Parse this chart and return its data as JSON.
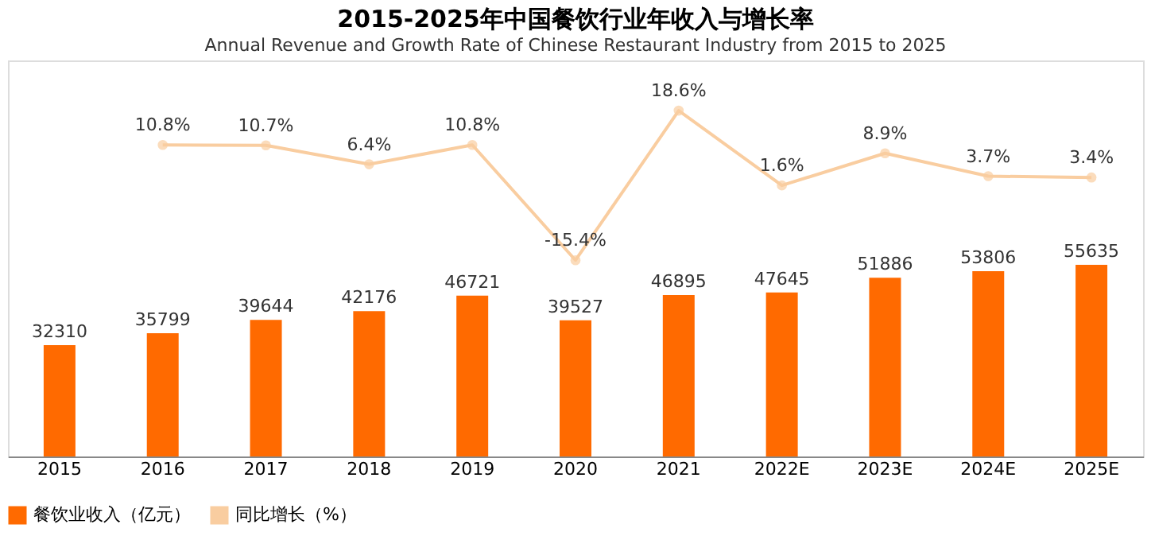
{
  "chart_data": {
    "type": "bar",
    "title": "2015-2025年中国餐饮行业年收入与增长率",
    "subtitle": "Annual Revenue and Growth Rate of Chinese Restaurant Industry from 2015 to 2025",
    "categories": [
      "2015",
      "2016",
      "2017",
      "2018",
      "2019",
      "2020",
      "2021",
      "2022E",
      "2023E",
      "2024E",
      "2025E"
    ],
    "series": [
      {
        "name": "餐饮业收入（亿元）",
        "color": "#ff6a00",
        "values": [
          32310,
          35799,
          39644,
          42176,
          46721,
          39527,
          46895,
          47645,
          51886,
          53806,
          55635
        ]
      },
      {
        "name": "同比增长（%）",
        "type": "line",
        "axis": "y2",
        "color": "#f9cda0",
        "marker": "circle",
        "values": [
          null,
          10.8,
          10.7,
          6.4,
          10.8,
          -15.4,
          18.6,
          1.6,
          8.9,
          3.7,
          3.4
        ],
        "value_labels": [
          null,
          "10.8%",
          "10.7%",
          "6.4%",
          "10.8%",
          "-15.4%",
          "18.6%",
          "1.6%",
          "8.9%",
          "3.7%",
          "3.4%"
        ]
      }
    ],
    "data_labels": true,
    "ylim": [
      0,
      115000
    ],
    "y2lim": [
      -60,
      30
    ],
    "tick_labels": "x",
    "grid": false,
    "legend": "bottom"
  }
}
